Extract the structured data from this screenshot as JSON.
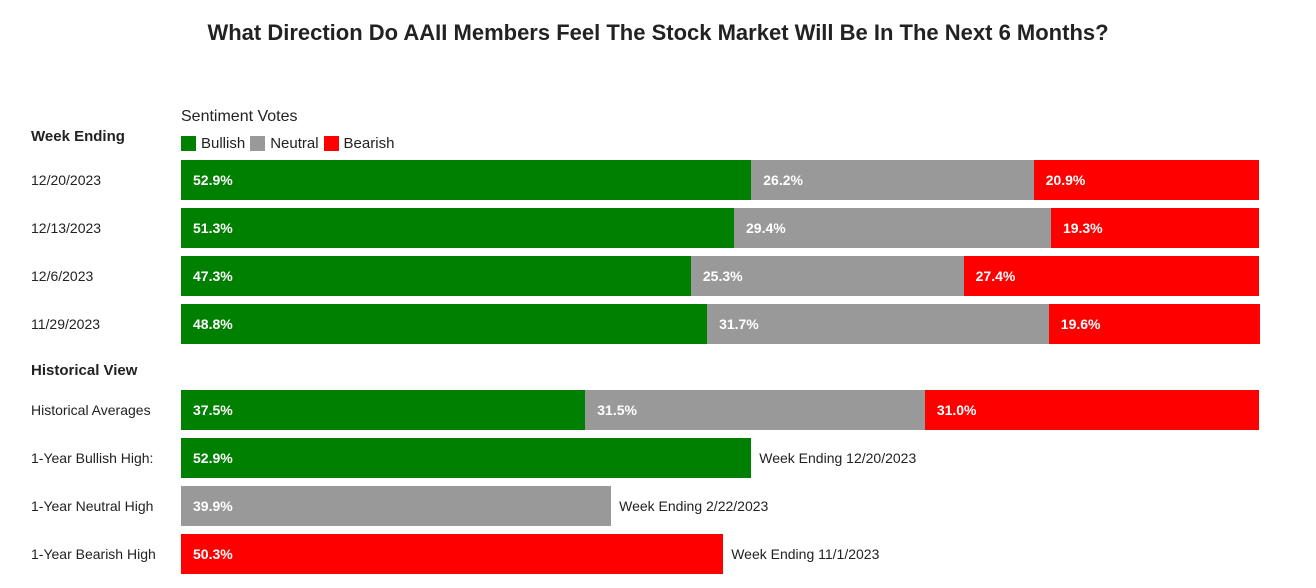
{
  "title": "What Direction Do AAII Members Feel The Stock Market Will Be In The Next 6 Months?",
  "subtitle": "Sentiment Votes",
  "colors": {
    "bullish": "#008000",
    "neutral": "#999999",
    "bearish": "#ff0000"
  },
  "chart_data": {
    "type": "bar",
    "orientation": "horizontal",
    "stacked": true,
    "title": "What Direction Do AAII Members Feel The Stock Market Will Be In The Next 6 Months?",
    "legend": [
      "Bullish",
      "Neutral",
      "Bearish"
    ],
    "legend_title": "Sentiment Votes",
    "sections": [
      {
        "heading": "Week Ending",
        "rows": [
          {
            "label": "12/20/2023",
            "values": [
              52.9,
              26.2,
              20.9
            ],
            "labels": [
              "52.9%",
              "26.2%",
              "20.9%"
            ]
          },
          {
            "label": "12/13/2023",
            "values": [
              51.3,
              29.4,
              19.3
            ],
            "labels": [
              "51.3%",
              "29.4%",
              "19.3%"
            ]
          },
          {
            "label": "12/6/2023",
            "values": [
              47.3,
              25.3,
              27.4
            ],
            "labels": [
              "47.3%",
              "25.3%",
              "27.4%"
            ]
          },
          {
            "label": "11/29/2023",
            "values": [
              48.8,
              31.7,
              19.6
            ],
            "labels": [
              "48.8%",
              "31.7%",
              "19.6%"
            ]
          }
        ]
      },
      {
        "heading": "Historical View",
        "rows": [
          {
            "label": "Historical Averages",
            "values": [
              37.5,
              31.5,
              31.0
            ],
            "labels": [
              "37.5%",
              "31.5%",
              "31.0%"
            ]
          },
          {
            "label": "1-Year Bullish High:",
            "values": [
              52.9,
              0,
              0
            ],
            "labels": [
              "52.9%",
              "",
              ""
            ],
            "note": "Week Ending 12/20/2023"
          },
          {
            "label": "1-Year Neutral High",
            "values": [
              0,
              39.9,
              0
            ],
            "labels": [
              "",
              "39.9%",
              ""
            ],
            "note": "Week Ending 2/22/2023"
          },
          {
            "label": "1-Year Bearish High",
            "values": [
              0,
              0,
              50.3
            ],
            "labels": [
              "",
              "",
              "50.3%"
            ],
            "note": "Week Ending 11/1/2023"
          }
        ]
      }
    ],
    "xlim": [
      0,
      100
    ]
  }
}
